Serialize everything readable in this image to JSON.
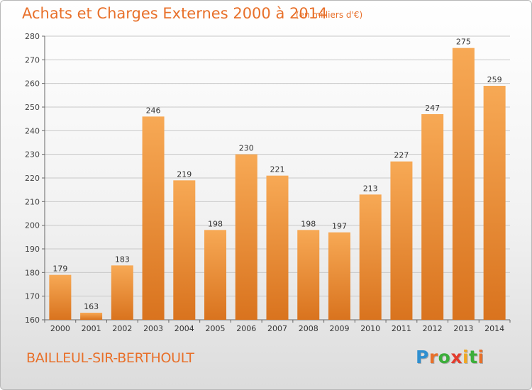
{
  "header": {
    "title": "Achats et Charges Externes 2000 à 2014",
    "units": "(en milliers d'€)"
  },
  "footer": {
    "commune": "BAILLEUL-SIR-BERTHOULT",
    "logo_letters": [
      "P",
      "r",
      "o",
      "x",
      "i",
      "t",
      "i"
    ],
    "logo_colors": [
      "#2f8fd0",
      "#e8702a",
      "#3cae3a",
      "#e33c2e",
      "#f0a722",
      "#3cae3a",
      "#e8702a"
    ]
  },
  "chart_data": {
    "type": "bar",
    "title": "Achats et Charges Externes 2000 à 2014",
    "xlabel": "",
    "ylabel": "",
    "categories": [
      "2000",
      "2001",
      "2002",
      "2003",
      "2004",
      "2005",
      "2006",
      "2007",
      "2008",
      "2009",
      "2010",
      "2011",
      "2012",
      "2013",
      "2014"
    ],
    "values": [
      179,
      163,
      183,
      246,
      219,
      198,
      230,
      221,
      198,
      197,
      213,
      227,
      247,
      275,
      259
    ],
    "ylim": [
      160,
      280
    ],
    "yticks": [
      160,
      170,
      180,
      190,
      200,
      210,
      220,
      230,
      240,
      250,
      260,
      270,
      280
    ],
    "grid": true,
    "bar_color_top": "#f7a955",
    "bar_color_bottom": "#d9731e"
  }
}
